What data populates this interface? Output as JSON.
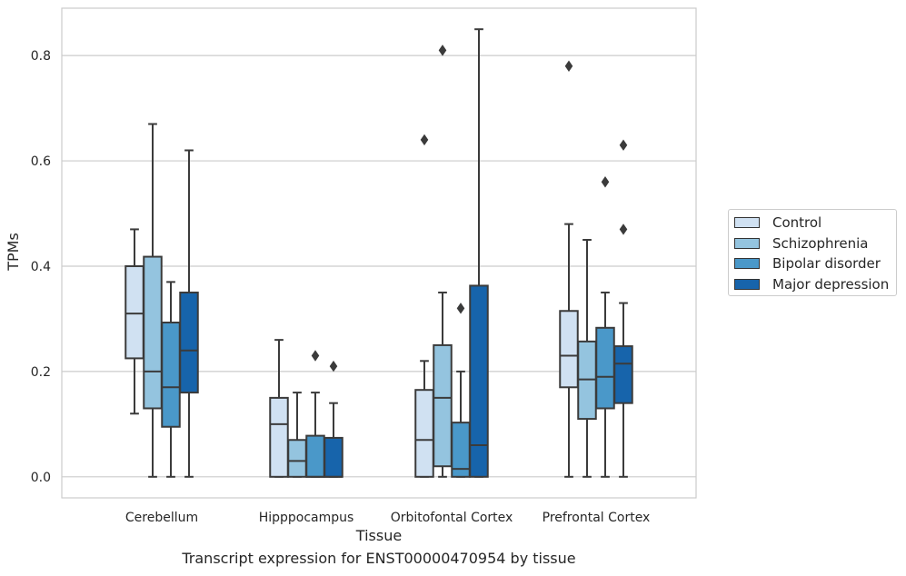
{
  "caption": "Transcript expression for ENST00000470954 by tissue",
  "colors": {
    "Control": "#d0e1f2",
    "Schizophrenia": "#94c4df",
    "Bipolar disorder": "#4a98c9",
    "Major depression": "#1764ab",
    "grid": "#cccccc",
    "box_edge": "#3b3b3b"
  },
  "chart_data": {
    "type": "box",
    "title": "",
    "xlabel": "Tissue",
    "ylabel": "TPMs",
    "ylim": [
      -0.04,
      0.89
    ],
    "yticks": [
      0.0,
      0.2,
      0.4,
      0.6,
      0.8
    ],
    "ytick_labels": [
      "0.0",
      "0.2",
      "0.4",
      "0.6",
      "0.8"
    ],
    "categories": [
      "Cerebellum",
      "Hipppocampus",
      "Orbitofontal Cortex",
      "Prefrontal Cortex"
    ],
    "grid": "horizontal",
    "legend_position": "right",
    "series": [
      {
        "name": "Control",
        "boxes": [
          {
            "whislo": 0.12,
            "q1": 0.225,
            "med": 0.31,
            "q3": 0.4,
            "whishi": 0.47,
            "fliers": []
          },
          {
            "whislo": 0.0,
            "q1": 0.0,
            "med": 0.1,
            "q3": 0.15,
            "whishi": 0.26,
            "fliers": []
          },
          {
            "whislo": 0.0,
            "q1": 0.0,
            "med": 0.07,
            "q3": 0.165,
            "whishi": 0.22,
            "fliers": [
              0.64
            ]
          },
          {
            "whislo": 0.0,
            "q1": 0.17,
            "med": 0.23,
            "q3": 0.315,
            "whishi": 0.48,
            "fliers": [
              0.78
            ]
          }
        ]
      },
      {
        "name": "Schizophrenia",
        "boxes": [
          {
            "whislo": 0.0,
            "q1": 0.13,
            "med": 0.2,
            "q3": 0.418,
            "whishi": 0.67,
            "fliers": []
          },
          {
            "whislo": 0.0,
            "q1": 0.0,
            "med": 0.03,
            "q3": 0.07,
            "whishi": 0.16,
            "fliers": []
          },
          {
            "whislo": 0.0,
            "q1": 0.02,
            "med": 0.15,
            "q3": 0.25,
            "whishi": 0.35,
            "fliers": [
              0.81
            ]
          },
          {
            "whislo": 0.0,
            "q1": 0.11,
            "med": 0.185,
            "q3": 0.257,
            "whishi": 0.45,
            "fliers": []
          }
        ]
      },
      {
        "name": "Bipolar disorder",
        "boxes": [
          {
            "whislo": 0.0,
            "q1": 0.095,
            "med": 0.17,
            "q3": 0.293,
            "whishi": 0.37,
            "fliers": []
          },
          {
            "whislo": 0.0,
            "q1": 0.0,
            "med": 0.0,
            "q3": 0.078,
            "whishi": 0.16,
            "fliers": [
              0.23
            ]
          },
          {
            "whislo": 0.0,
            "q1": 0.0,
            "med": 0.015,
            "q3": 0.103,
            "whishi": 0.2,
            "fliers": [
              0.32
            ]
          },
          {
            "whislo": 0.0,
            "q1": 0.13,
            "med": 0.19,
            "q3": 0.283,
            "whishi": 0.35,
            "fliers": [
              0.56
            ]
          }
        ]
      },
      {
        "name": "Major depression",
        "boxes": [
          {
            "whislo": 0.0,
            "q1": 0.16,
            "med": 0.24,
            "q3": 0.35,
            "whishi": 0.62,
            "fliers": []
          },
          {
            "whislo": 0.0,
            "q1": 0.0,
            "med": 0.0,
            "q3": 0.074,
            "whishi": 0.14,
            "fliers": [
              0.21
            ]
          },
          {
            "whislo": 0.0,
            "q1": 0.0,
            "med": 0.06,
            "q3": 0.363,
            "whishi": 0.85,
            "fliers": []
          },
          {
            "whislo": 0.0,
            "q1": 0.14,
            "med": 0.215,
            "q3": 0.248,
            "whishi": 0.33,
            "fliers": [
              0.47,
              0.63
            ]
          }
        ]
      }
    ]
  }
}
